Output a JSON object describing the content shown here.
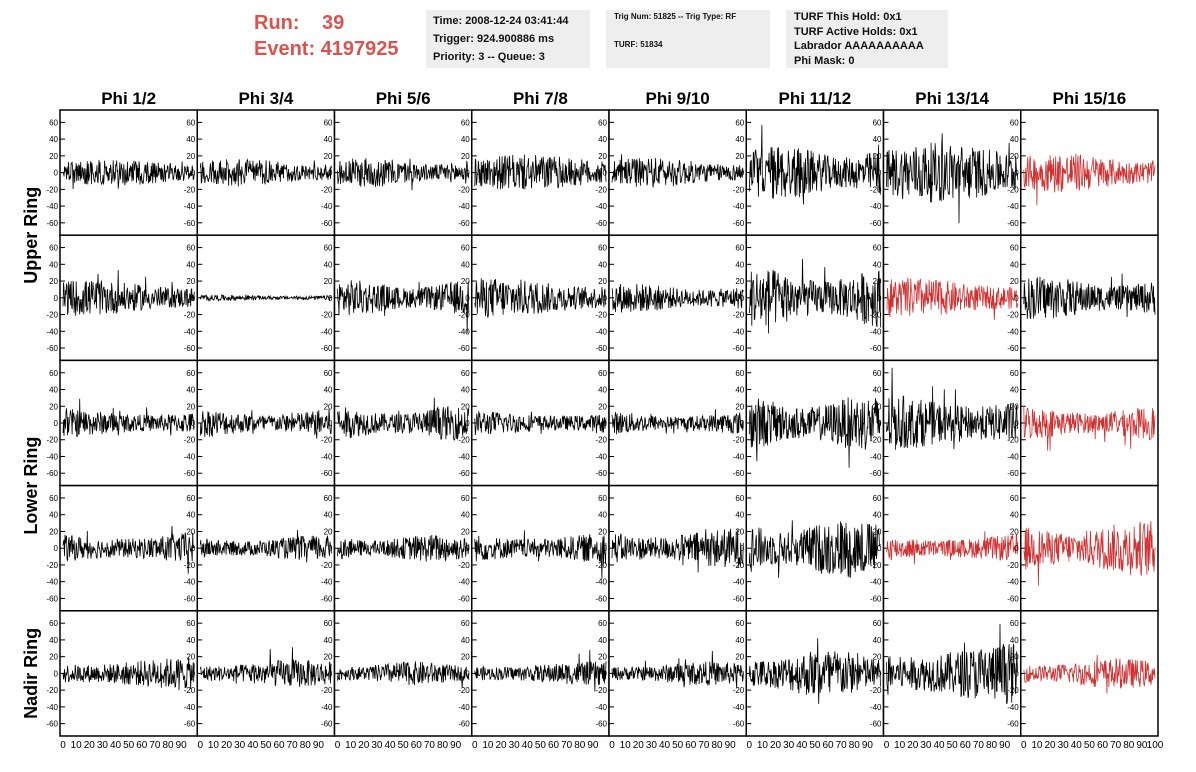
{
  "header": {
    "run_label": "Run:",
    "run_value": "39",
    "event_label": "Event:",
    "event_value": "4197925",
    "time_line": "Time: 2008-12-24 03:41:44",
    "trigger_line": "Trigger: 924.900886 ms",
    "priority_line": "Priority: 3 -- Queue: 3",
    "trig_line": "Trig Num: 51825 -- Trig Type: RF",
    "turf_line": "TURF: 51834",
    "turf_hold_line": "TURF This Hold: 0x1",
    "turf_active_line": "TURF Active Holds: 0x1",
    "labrador_line": "Labrador AAAAAAAAAA",
    "phi_mask_line": "Phi Mask: 0"
  },
  "colors": {
    "normal_trace": "#000000",
    "highlight_trace": "#d03030",
    "header_text": "#d9534f",
    "box_bg": "#eeeeee"
  },
  "chart_data": {
    "type": "line",
    "columns": [
      "Phi 1/2",
      "Phi 3/4",
      "Phi 5/6",
      "Phi 7/8",
      "Phi 9/10",
      "Phi 11/12",
      "Phi 13/14",
      "Phi 15/16"
    ],
    "rows": [
      "Upper Ring",
      "Upper Ring",
      "Lower Ring",
      "Lower Ring",
      "Nadir Ring"
    ],
    "ring_labels": [
      "Upper Ring",
      "Lower Ring",
      "Nadir Ring"
    ],
    "ylim": [
      -70,
      70
    ],
    "xlim": [
      0,
      100
    ],
    "yticks": [
      -60,
      -40,
      -20,
      0,
      20,
      40,
      60
    ],
    "xtick_labels": [
      "0",
      "10",
      "20",
      "30",
      "40",
      "50",
      "60",
      "70",
      "80",
      "90",
      "100"
    ],
    "amplitude": [
      [
        13,
        14,
        15,
        18,
        15,
        28,
        30,
        20
      ],
      [
        18,
        3,
        18,
        20,
        15,
        30,
        20,
        22
      ],
      [
        15,
        15,
        17,
        13,
        12,
        28,
        30,
        18
      ],
      [
        17,
        13,
        14,
        17,
        20,
        30,
        15,
        28
      ],
      [
        16,
        14,
        12,
        12,
        12,
        25,
        30,
        15
      ]
    ],
    "highlighted": [
      [
        7
      ],
      [
        6
      ],
      [
        7
      ],
      [
        6,
        7
      ],
      [
        7
      ]
    ],
    "samples_per_trace": 260
  }
}
